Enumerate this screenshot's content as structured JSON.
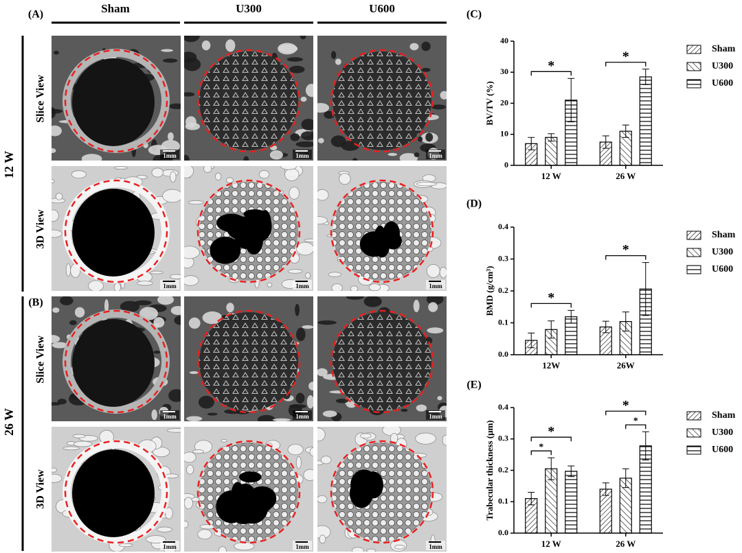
{
  "panel_a": "(A)",
  "panel_b": "(B)",
  "columns": [
    "Sham",
    "U300",
    "U600"
  ],
  "timepoints": [
    "12 W",
    "26 W"
  ],
  "views": [
    "Slice View",
    "3D View"
  ],
  "scale_bar": "1mm",
  "chart_data": [
    {
      "type": "bar",
      "title": "(C)",
      "ylabel": "BV/TV (%)",
      "categories": [
        "12 W",
        "26 W"
      ],
      "ylim": [
        0,
        40
      ],
      "yticks": [
        0,
        10,
        20,
        30,
        40
      ],
      "grid": false,
      "series": [
        {
          "name": "Sham",
          "color": "#000000",
          "hatch": "forward",
          "values": [
            7,
            7.5
          ],
          "errors": [
            2,
            2
          ]
        },
        {
          "name": "U300",
          "color": "#000000",
          "hatch": "back",
          "values": [
            9,
            11
          ],
          "errors": [
            1.2,
            2
          ]
        },
        {
          "name": "U600",
          "color": "#000000",
          "hatch": "horizontal",
          "values": [
            21,
            28.5
          ],
          "errors": [
            7,
            2.5
          ]
        }
      ],
      "significance": [
        {
          "category": 0,
          "from": 0,
          "to": 2,
          "label": "*"
        },
        {
          "category": 1,
          "from": 0,
          "to": 2,
          "label": "*"
        }
      ]
    },
    {
      "type": "bar",
      "title": "(D)",
      "ylabel": "BMD (g/cm³)",
      "categories": [
        "12W",
        "26W"
      ],
      "ylim": [
        0,
        0.4
      ],
      "yticks": [
        {
          "value": 0,
          "label": "0.0"
        },
        0.1,
        0.2,
        0.3,
        0.4
      ],
      "grid": false,
      "series": [
        {
          "name": "Sham",
          "color": "#000000",
          "hatch": "forward",
          "values": [
            0.045,
            0.087
          ],
          "errors": [
            0.023,
            0.018
          ]
        },
        {
          "name": "U300",
          "color": "#000000",
          "hatch": "back",
          "values": [
            0.079,
            0.104
          ],
          "errors": [
            0.027,
            0.03
          ]
        },
        {
          "name": "U600",
          "color": "#000000",
          "hatch": "horizontal",
          "values": [
            0.119,
            0.206
          ],
          "errors": [
            0.02,
            0.083
          ]
        }
      ],
      "significance": [
        {
          "category": 0,
          "from": 0,
          "to": 2,
          "label": "*"
        },
        {
          "category": 1,
          "from": 0,
          "to": 2,
          "label": "*"
        }
      ]
    },
    {
      "type": "bar",
      "title": "(E)",
      "ylabel": "Trabecular thickness (μm)",
      "categories": [
        "12 W",
        "26 W"
      ],
      "ylim": [
        0,
        0.4
      ],
      "yticks": [
        {
          "value": 0,
          "label": "0.0"
        },
        0.1,
        0.2,
        0.3,
        0.4
      ],
      "grid": false,
      "series": [
        {
          "name": "Sham",
          "color": "#000000",
          "hatch": "forward",
          "values": [
            0.11,
            0.14
          ],
          "errors": [
            0.02,
            0.02
          ]
        },
        {
          "name": "U300",
          "color": "#000000",
          "hatch": "back",
          "values": [
            0.205,
            0.175
          ],
          "errors": [
            0.035,
            0.03
          ]
        },
        {
          "name": "U600",
          "color": "#000000",
          "hatch": "horizontal",
          "values": [
            0.197,
            0.278
          ],
          "errors": [
            0.017,
            0.045
          ]
        }
      ],
      "significance": [
        {
          "category": 0,
          "from": 0,
          "to": 1,
          "label": "*"
        },
        {
          "category": 0,
          "from": 0,
          "to": 2,
          "label": "*"
        },
        {
          "category": 1,
          "from": 1,
          "to": 2,
          "label": "*"
        },
        {
          "category": 1,
          "from": 0,
          "to": 2,
          "label": "*"
        }
      ]
    }
  ]
}
